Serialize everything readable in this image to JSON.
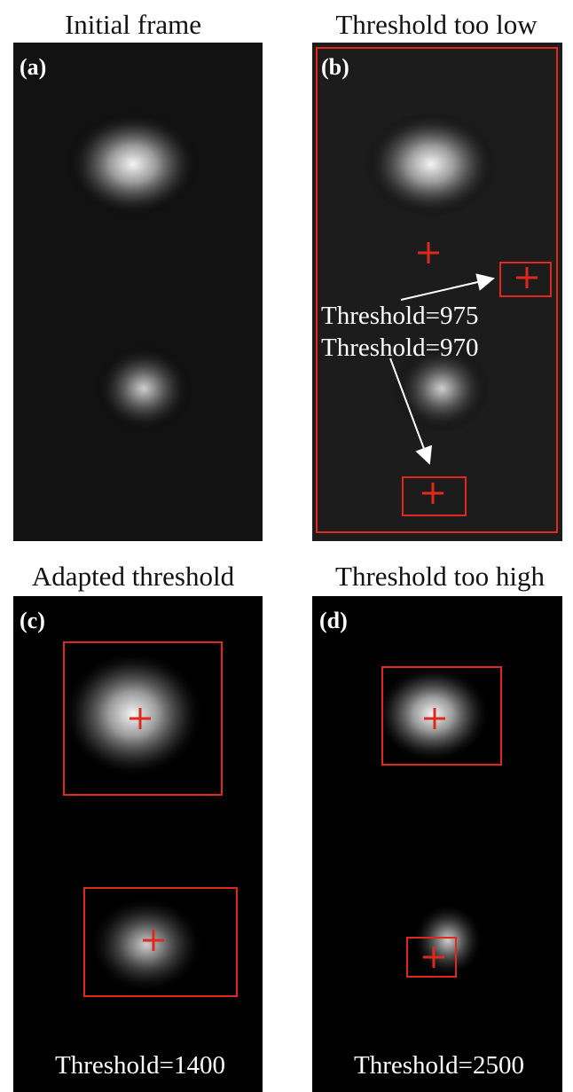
{
  "panels": [
    {
      "title": "Initial frame",
      "label": "(a)"
    },
    {
      "title": "Threshold too low",
      "label": "(b)",
      "annotations": [
        "Threshold=975",
        "Threshold=970"
      ]
    },
    {
      "title": "Adapted threshold",
      "label": "(c)",
      "annotations": [
        "Threshold=1400"
      ]
    },
    {
      "title": "Threshold too high",
      "label": "(d)",
      "annotations": [
        "Threshold=2500"
      ]
    }
  ]
}
